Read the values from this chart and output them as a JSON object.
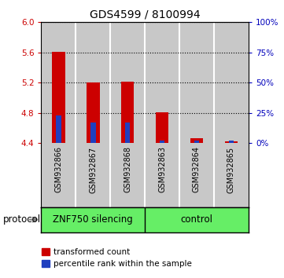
{
  "title": "GDS4599 / 8100994",
  "samples": [
    "GSM932866",
    "GSM932867",
    "GSM932868",
    "GSM932863",
    "GSM932864",
    "GSM932865"
  ],
  "group_labels": [
    "ZNF750 silencing",
    "control"
  ],
  "group_split": 3,
  "red_values": [
    5.61,
    5.2,
    5.21,
    4.81,
    4.47,
    4.42
  ],
  "blue_values": [
    4.77,
    4.67,
    4.67,
    4.43,
    4.43,
    4.43
  ],
  "ylim": [
    4.4,
    6.0
  ],
  "yticks_left": [
    4.4,
    4.8,
    5.2,
    5.6,
    6.0
  ],
  "yticks_right_pct": [
    0,
    25,
    50,
    75,
    100
  ],
  "red_color": "#CC0000",
  "blue_color": "#1F3FBF",
  "bar_bg_color": "#C8C8C8",
  "green_color": "#66EE66",
  "legend_red": "transformed count",
  "legend_blue": "percentile rank within the sample",
  "left_color": "#CC0000",
  "right_color": "#0000BB",
  "title_fontsize": 10,
  "tick_fontsize": 7.5,
  "sample_fontsize": 7,
  "group_fontsize": 8.5,
  "legend_fontsize": 7.5,
  "protocol_fontsize": 8.5
}
